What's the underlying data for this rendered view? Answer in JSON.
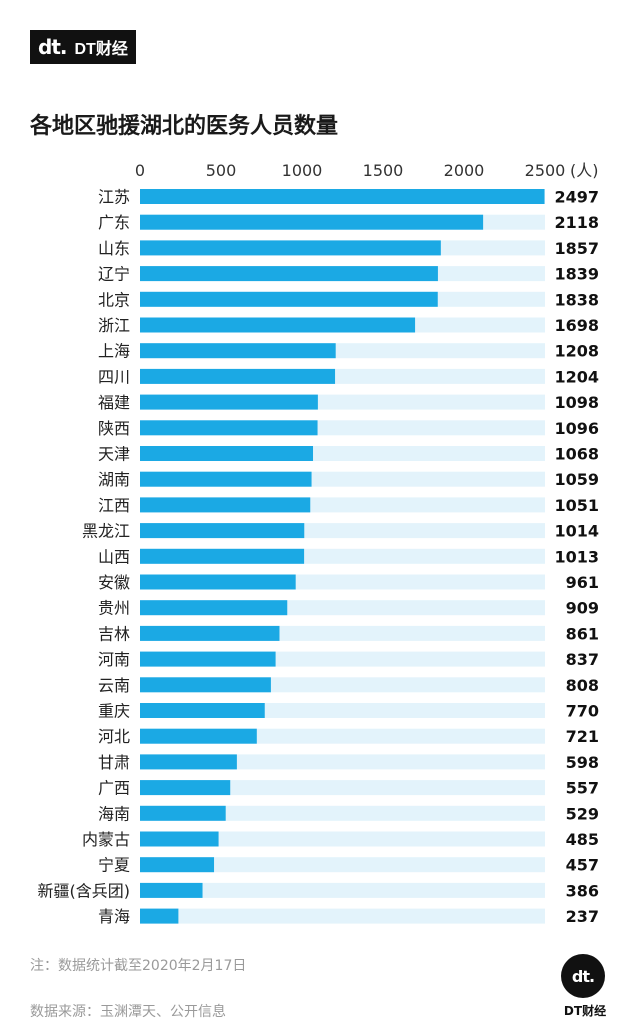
{
  "brand": {
    "mark": "dt.",
    "name": "DT财经"
  },
  "title": "各地区驰援湖北的医务人员数量",
  "footer": {
    "note": "注：数据统计截至2020年2月17日",
    "source": "数据来源：玉渊潭天、公开信息",
    "badge_mark": "dt.",
    "badge_text": "DT财经"
  },
  "colors": {
    "bar": "#1ba9e4",
    "track": "#e3f3fb",
    "tick": "#333333"
  },
  "chart_data": {
    "type": "bar",
    "orientation": "horizontal",
    "title": "各地区驰援湖北的医务人员数量",
    "unit_label": "(人)",
    "xlim": [
      0,
      2500
    ],
    "ticks": [
      0,
      500,
      1000,
      1500,
      2000,
      2500
    ],
    "categories": [
      "江苏",
      "广东",
      "山东",
      "辽宁",
      "北京",
      "浙江",
      "上海",
      "四川",
      "福建",
      "陕西",
      "天津",
      "湖南",
      "江西",
      "黑龙江",
      "山西",
      "安徽",
      "贵州",
      "吉林",
      "河南",
      "云南",
      "重庆",
      "河北",
      "甘肃",
      "广西",
      "海南",
      "内蒙古",
      "宁夏",
      "新疆(含兵团)",
      "青海"
    ],
    "values": [
      2497,
      2118,
      1857,
      1839,
      1838,
      1698,
      1208,
      1204,
      1098,
      1096,
      1068,
      1059,
      1051,
      1014,
      1013,
      961,
      909,
      861,
      837,
      808,
      770,
      721,
      598,
      557,
      529,
      485,
      457,
      386,
      237
    ],
    "grid": false,
    "data_labels": true
  }
}
